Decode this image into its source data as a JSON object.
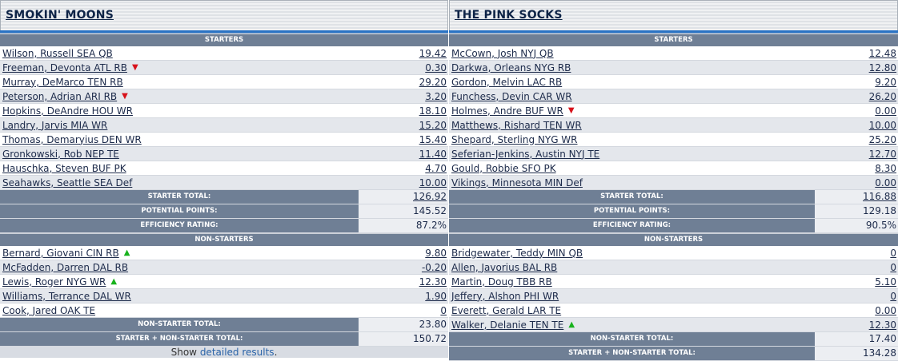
{
  "left": {
    "name": "SMOKIN' MOONS",
    "starters_label": "STARTERS",
    "starters": [
      {
        "player": "Wilson, Russell SEA QB",
        "points": "19.42",
        "arrow": ""
      },
      {
        "player": "Freeman, Devonta ATL RB",
        "points": "0.30",
        "arrow": "down"
      },
      {
        "player": "Murray, DeMarco TEN RB",
        "points": "29.20",
        "arrow": ""
      },
      {
        "player": "Peterson, Adrian ARI RB",
        "points": "3.20",
        "arrow": "down"
      },
      {
        "player": "Hopkins, DeAndre HOU WR",
        "points": "18.10",
        "arrow": ""
      },
      {
        "player": "Landry, Jarvis MIA WR",
        "points": "15.20",
        "arrow": ""
      },
      {
        "player": "Thomas, Demaryius DEN WR",
        "points": "15.40",
        "arrow": ""
      },
      {
        "player": "Gronkowski, Rob NEP TE",
        "points": "11.40",
        "arrow": ""
      },
      {
        "player": "Hauschka, Steven BUF PK",
        "points": "4.70",
        "arrow": ""
      },
      {
        "player": "Seahawks, Seattle SEA Def",
        "points": "10.00",
        "arrow": ""
      }
    ],
    "starter_total_label": "STARTER TOTAL:",
    "starter_total": "126.92",
    "potential_label": "POTENTIAL POINTS:",
    "potential": "145.52",
    "efficiency_label": "EFFICIENCY RATING:",
    "efficiency": "87.2%",
    "nonstarters_label": "NON-STARTERS",
    "nonstarters": [
      {
        "player": "Bernard, Giovani CIN RB",
        "points": "9.80",
        "arrow": "up"
      },
      {
        "player": "McFadden, Darren DAL RB",
        "points": "-0.20",
        "arrow": ""
      },
      {
        "player": "Lewis, Roger NYG WR",
        "points": "12.30",
        "arrow": "up"
      },
      {
        "player": "Williams, Terrance DAL WR",
        "points": "1.90",
        "arrow": ""
      },
      {
        "player": "Cook, Jared OAK TE",
        "points": "0",
        "arrow": ""
      }
    ],
    "nonstarter_total_label": "NON-STARTER TOTAL:",
    "nonstarter_total": "23.80",
    "combined_label": "STARTER + NON-STARTER TOTAL:",
    "combined_total": "150.72"
  },
  "right": {
    "name": "THE PINK SOCKS",
    "starters_label": "STARTERS",
    "starters": [
      {
        "player": "McCown, Josh NYJ QB",
        "points": "12.48",
        "arrow": ""
      },
      {
        "player": "Darkwa, Orleans NYG RB",
        "points": "12.80",
        "arrow": ""
      },
      {
        "player": "Gordon, Melvin LAC RB",
        "points": "9.20",
        "arrow": ""
      },
      {
        "player": "Funchess, Devin CAR WR",
        "points": "26.20",
        "arrow": ""
      },
      {
        "player": "Holmes, Andre BUF WR",
        "points": "0.00",
        "arrow": "down"
      },
      {
        "player": "Matthews, Rishard TEN WR",
        "points": "10.00",
        "arrow": ""
      },
      {
        "player": "Shepard, Sterling NYG WR",
        "points": "25.20",
        "arrow": ""
      },
      {
        "player": "Seferian-Jenkins, Austin NYJ TE",
        "points": "12.70",
        "arrow": ""
      },
      {
        "player": "Gould, Robbie SFO PK",
        "points": "8.30",
        "arrow": ""
      },
      {
        "player": "Vikings, Minnesota MIN Def",
        "points": "0.00",
        "arrow": ""
      }
    ],
    "starter_total_label": "STARTER TOTAL:",
    "starter_total": "116.88",
    "potential_label": "POTENTIAL POINTS:",
    "potential": "129.18",
    "efficiency_label": "EFFICIENCY RATING:",
    "efficiency": "90.5%",
    "nonstarters_label": "NON-STARTERS",
    "nonstarters": [
      {
        "player": "Bridgewater, Teddy MIN QB",
        "points": "0",
        "arrow": ""
      },
      {
        "player": "Allen, Javorius BAL RB",
        "points": "0",
        "arrow": ""
      },
      {
        "player": "Martin, Doug TBB RB",
        "points": "5.10",
        "arrow": ""
      },
      {
        "player": "Jeffery, Alshon PHI WR",
        "points": "0",
        "arrow": ""
      },
      {
        "player": "Everett, Gerald LAR TE",
        "points": "0.00",
        "arrow": ""
      },
      {
        "player": "Walker, Delanie TEN TE",
        "points": "12.30",
        "arrow": "up"
      }
    ],
    "nonstarter_total_label": "NON-STARTER TOTAL:",
    "nonstarter_total": "17.40",
    "combined_label": "STARTER + NON-STARTER TOTAL:",
    "combined_total": "134.28"
  },
  "footer": {
    "prefix": "Show ",
    "link": "detailed results",
    "suffix": "."
  },
  "icons": {
    "down": "red-down-triangle",
    "up": "green-up-triangle"
  },
  "colors": {
    "accent": "#2a73c4",
    "section_bar": "#6f7f95",
    "arrow_down": "#d8121b",
    "arrow_up": "#18b21d"
  }
}
